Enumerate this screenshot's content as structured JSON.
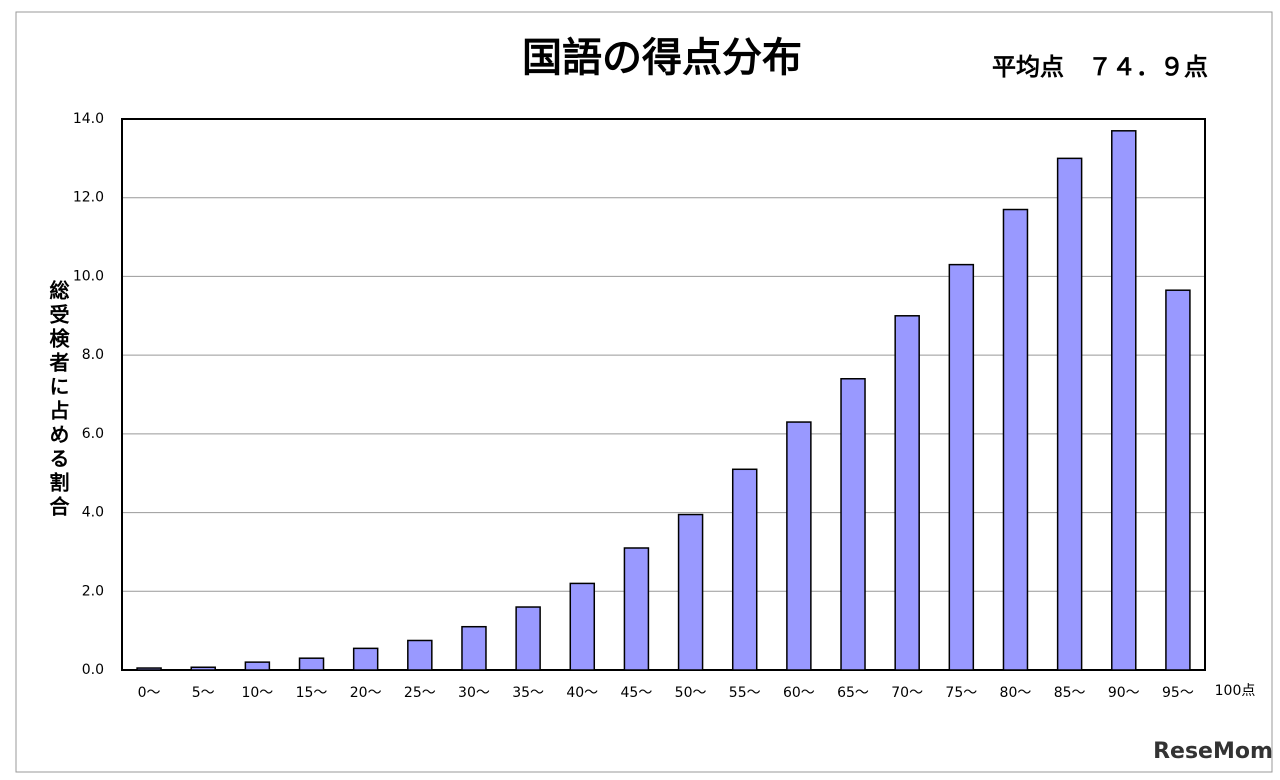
{
  "chart_data": {
    "type": "bar",
    "title": "国語の得点分布",
    "subtitle": "平均点　７４．９点",
    "y_label": "総受検者に占める割合",
    "categories": [
      "0～",
      "5～",
      "10～",
      "15～",
      "20～",
      "25～",
      "30～",
      "35～",
      "40～",
      "45～",
      "50～",
      "55～",
      "60～",
      "65～",
      "70～",
      "75～",
      "80～",
      "85～",
      "90～",
      "95～"
    ],
    "x_end_label": "100点",
    "values": [
      0.05,
      0.07,
      0.2,
      0.3,
      0.55,
      0.75,
      1.1,
      1.6,
      2.2,
      3.1,
      3.95,
      5.1,
      6.3,
      7.4,
      9.0,
      10.3,
      11.7,
      13.0,
      13.7,
      9.65
    ],
    "color": "#9999ff",
    "ylim": [
      0,
      14
    ],
    "yticks": [
      {
        "value": 0,
        "label": "0.0"
      },
      {
        "value": 2,
        "label": "2.0"
      },
      {
        "value": 4,
        "label": "4.0"
      },
      {
        "value": 6,
        "label": "6.0"
      },
      {
        "value": 8,
        "label": "8.0"
      },
      {
        "value": 10,
        "label": "10.0"
      },
      {
        "value": 12,
        "label": "12.0"
      },
      {
        "value": 14,
        "label": "14.0"
      }
    ],
    "grid": true,
    "watermark": "ReseMom"
  }
}
